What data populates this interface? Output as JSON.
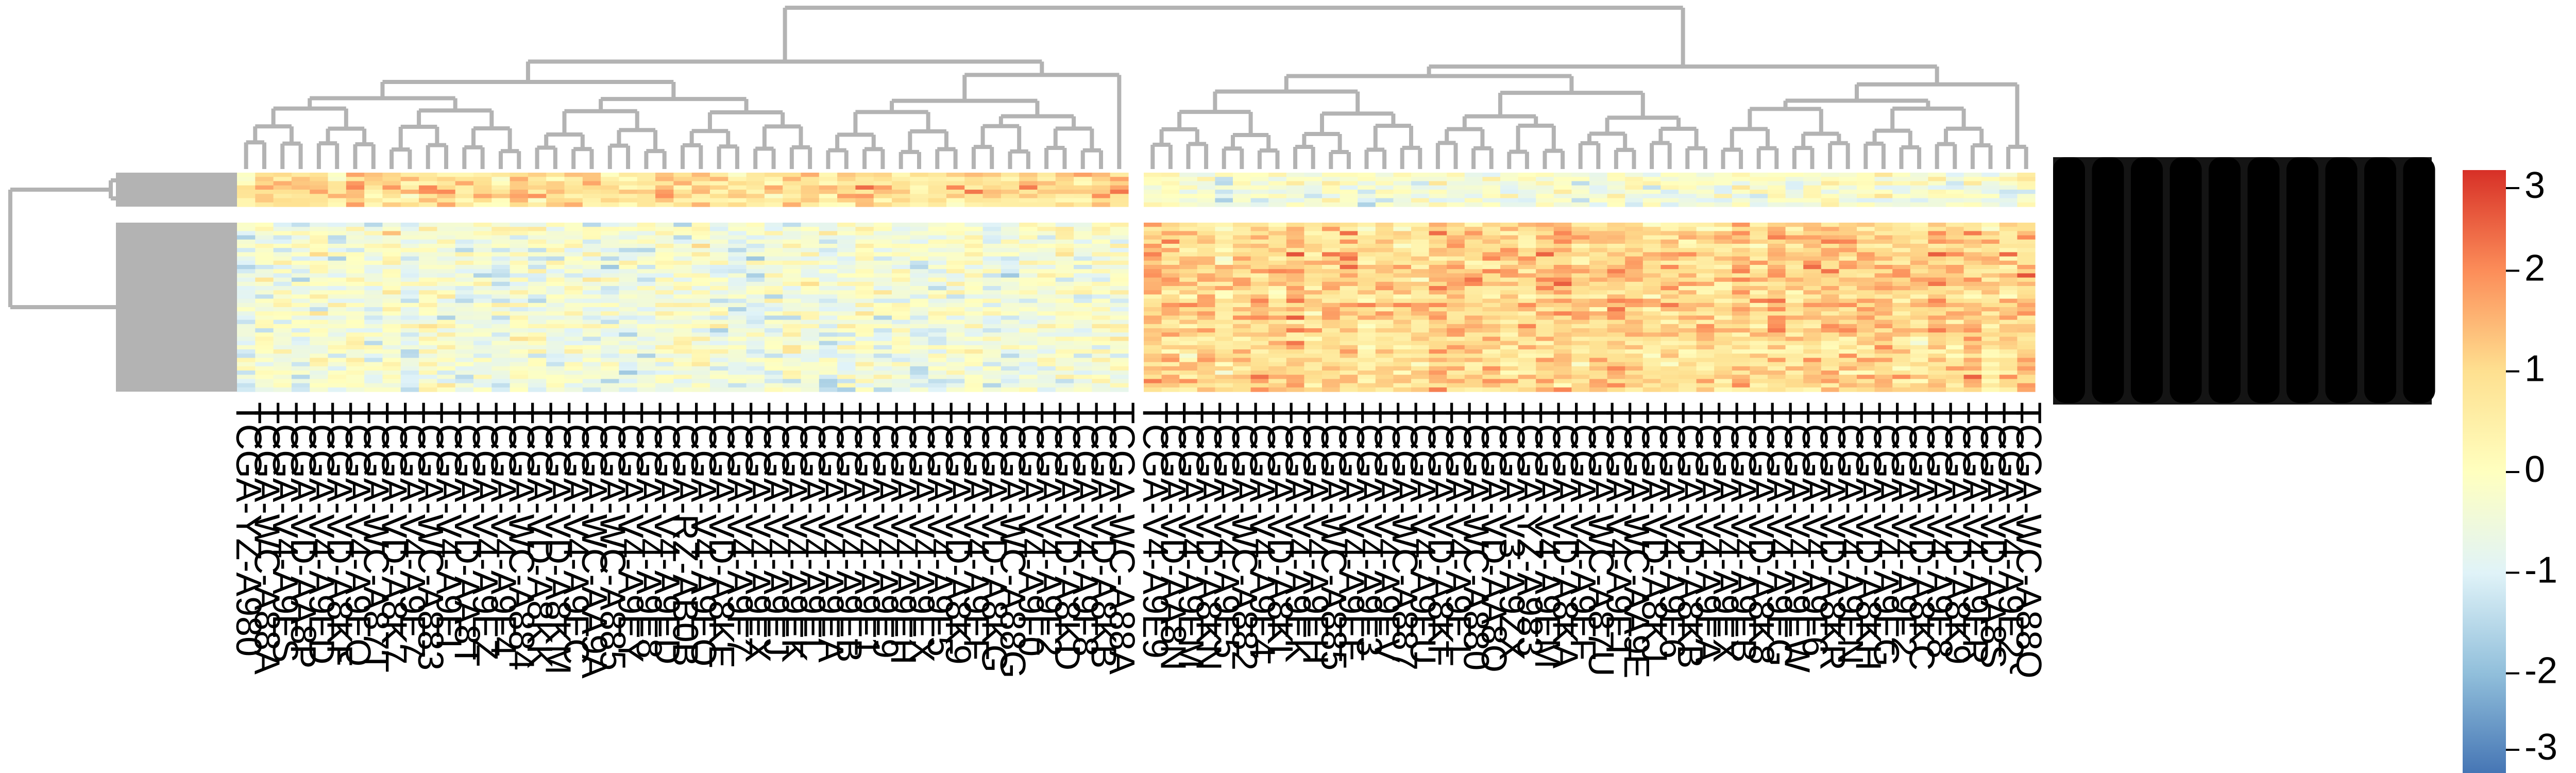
{
  "chart_data": {
    "type": "heatmap",
    "title": "",
    "xlabel": "",
    "ylabel": "",
    "color_scale": {
      "min": -3,
      "max": 3,
      "ticks": [
        3,
        2,
        1,
        0,
        -1,
        -2,
        -3
      ],
      "tick_labels": [
        "3",
        "2",
        "1",
        "0",
        "-1",
        "-2",
        "-3"
      ],
      "colors": [
        "#4575b4",
        "#91bfdb",
        "#e0f3f8",
        "#ffffbf",
        "#fee090",
        "#fc8d59",
        "#d73027"
      ]
    },
    "dendrogram_color": "#b3b3b3",
    "row_clusters": [
      {
        "id": "upper",
        "rows": 8,
        "mean_left": 0.9,
        "mean_right": -0.35
      },
      {
        "id": "lower",
        "rows": 40,
        "mean_left": -0.35,
        "mean_right": 1.05
      }
    ],
    "column_clusters": [
      {
        "id": "left",
        "mean_upper": 0.9,
        "mean_lower": -0.35,
        "columns": [
          "TCGA-YZ-A980",
          "TCGA-WC-A88A",
          "TCGA-V4-A9ES",
          "TCGA-VD-AA8P",
          "TCGA-V4-A9ED",
          "TCGA-VD-A8KF",
          "TCGA-V4-A9EQ",
          "TCGA-WC-A87T",
          "TCGA-VD-A8K7",
          "TCGA-V4-A9E7",
          "TCGA-WC-A883",
          "TCGA-V4-A9EI",
          "TCGA-VD-AA8T",
          "TCGA-V4-A9EZ",
          "TCGA-V4-A9F4",
          "TCGA-WC-A884",
          "TCGA-VD-A8KK",
          "TCGA-VD-A8KM",
          "TCGA-V4-A9EC",
          "TCGA-WC-AA9A",
          "TCGA-WC-A885",
          "TCGA-V4-A9EY",
          "TCGA-V4-A9E8",
          "TCGA-V4-A9ED",
          "TCGA-RZ-AB0B",
          "TCGA-V4-A9EO",
          "TCGA-VD-A8KE",
          "TCGA-V4-A9F7",
          "TCGA-V4-A9EX",
          "TCGA-V4-A9EJ",
          "TCGA-V4-A9EK",
          "TCGA-V4-A9EL",
          "TCGA-V4-A9EA",
          "TCGA-V4-A9EB",
          "TCGA-V4-A9F1",
          "TCGA-V4-A9E9",
          "TCGA-V4-A9EH",
          "TCGA-V4-A9EX",
          "TCGA-V4-A9F5",
          "TCGA-VD-A8K9",
          "TCGA-V4-A9EF",
          "TCGA-VD-A8KG",
          "TCGA-WC-A88G",
          "TCGA-V4-A9F0",
          "TCGA-V4-A9F2",
          "TCGA-VD-A8KD",
          "TCGA-V4-A9F8",
          "TCGA-VD-A8KB",
          "TCGA-WC-A88A"
        ]
      },
      {
        "id": "right",
        "mean_upper": -0.35,
        "mean_lower": 1.05,
        "columns": [
          "TCGA-V4-A9E9",
          "TCGA-VD-AA8N",
          "TCGA-V4-A9EM",
          "TCGA-VD-A8KN",
          "TCGA-V4-A9E5",
          "TCGA-WC-A882",
          "TCGA-V4-A9E4",
          "TCGA-VD-A8KL",
          "TCGA-V4-A9EK",
          "TCGA-V4-A9EH",
          "TCGA-WC-A885",
          "TCGA-V4-A9EE",
          "TCGA-V4-A9F3",
          "TCGA-V4-A9EV",
          "TCGA-WC-A887",
          "TCGA-V4-A9EU",
          "TCGA-VD-A8KF",
          "TCGA-V4-A9E1",
          "TCGA-WC-A880",
          "TCGA-VD-AA8O",
          "TCGA-V3-A9ZX",
          "TCGA-YZ-A983",
          "TCGA-V4-A9EM",
          "TCGA-VD-A8KA",
          "TCGA-V4-A9EF",
          "TCGA-WC-A87U",
          "TCGA-V4-A9ET",
          "TCGA-WC-AA9E",
          "TCGA-VD-A8KJ",
          "TCGA-V4-A9E6",
          "TCGA-VD-A8KB",
          "TCGA-V4-A9EA",
          "TCGA-V4-A9EX",
          "TCGA-V4-A9EB",
          "TCGA-VD-A8K8",
          "TCGA-V4-A9EG",
          "TCGA-V4-A9EW",
          "TCGA-V4-A9F6",
          "TCGA-VD-A8KR",
          "TCGA-V4-A9EN",
          "TCGA-VD-A8KH",
          "TCGA-V4-A9EG",
          "TCGA-V4-A9F2",
          "TCGA-VD-A8KC",
          "TCGA-V4-A9E8",
          "TCGA-VD-A8K9",
          "TCGA-V4-A9ER",
          "TCGA-VD-AA8S",
          "TCGA-V4-A9E2",
          "TCGA-WC-A88Q"
        ]
      }
    ]
  }
}
